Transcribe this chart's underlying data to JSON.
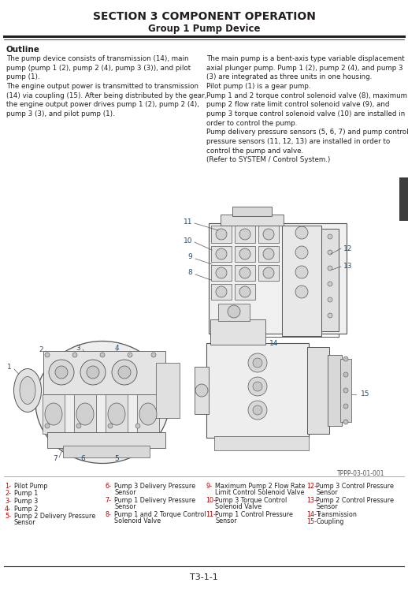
{
  "title": "SECTION 3 COMPONENT OPERATION",
  "subtitle": "Group 1 Pump Device",
  "section_label": "Outline",
  "body_left_line1": "The pump device consists of transmission (14), main",
  "body_left_line2": "pump (pump 1 (2), pump 2 (4), pump 3 (3)), and pilot",
  "body_left_line3": "pump (1).",
  "body_left_line4": "The engine output power is transmitted to transmission",
  "body_left_line5": "(14) via coupling (15). After being distributed by the gear,",
  "body_left_line6": "the engine output power drives pump 1 (2), pump 2 (4),",
  "body_left_line7": "pump 3 (3), and pilot pump (1).",
  "body_right_line1": "The main pump is a bent-axis type variable displacement",
  "body_right_line2": "axial plunger pump. Pump 1 (2), pump 2 (4), and pump 3",
  "body_right_line3": "(3) are integrated as three units in one housing.",
  "body_right_line4": "Pilot pump (1) is a gear pump.",
  "body_right_line5": "Pump 1 and 2 torque control solenoid valve (8), maximum",
  "body_right_line6": "pump 2 flow rate limit control solenoid valve (9), and",
  "body_right_line7": "pump 3 torque control solenoid valve (10) are installed in",
  "body_right_line8": "order to control the pump.",
  "body_right_line9": "Pump delivery pressure sensors (5, 6, 7) and pump control",
  "body_right_line10": "pressure sensors (11, 12, 13) are installed in order to",
  "body_right_line11": "control the pump and valve.",
  "body_right_line12": "(Refer to SYSTEM / Control System.)",
  "figure_note": "TPPP-03-01-001",
  "page_number": "T3-1-1",
  "legend_col1": [
    {
      "num": "1-",
      "lines": [
        "Pilot Pump"
      ]
    },
    {
      "num": "2-",
      "lines": [
        "Pump 1"
      ]
    },
    {
      "num": "3-",
      "lines": [
        "Pump 3"
      ]
    },
    {
      "num": "4-",
      "lines": [
        "Pump 2"
      ]
    },
    {
      "num": "5-",
      "lines": [
        "Pump 2 Delivery Pressure",
        "Sensor"
      ]
    }
  ],
  "legend_col2": [
    {
      "num": "6-",
      "lines": [
        "Pump 3 Delivery Pressure",
        "Sensor"
      ]
    },
    {
      "num": "7-",
      "lines": [
        "Pump 1 Delivery Pressure",
        "Sensor"
      ]
    },
    {
      "num": "8-",
      "lines": [
        "Pump 1 and 2 Torque Control",
        "Solenoid Valve"
      ]
    }
  ],
  "legend_col3": [
    {
      "num": "9-",
      "lines": [
        "Maximum Pump 2 Flow Rate",
        "Limit Control Solenoid Valve"
      ]
    },
    {
      "num": "10-",
      "lines": [
        "Pump 3 Torque Control",
        "Solenoid Valve"
      ]
    },
    {
      "num": "11-",
      "lines": [
        "Pump 1 Control Pressure",
        "Sensor"
      ]
    }
  ],
  "legend_col4": [
    {
      "num": "12-",
      "lines": [
        "Pump 3 Control Pressure",
        "Sensor"
      ]
    },
    {
      "num": "13-",
      "lines": [
        "Pump 2 Control Pressure",
        "Sensor"
      ]
    },
    {
      "num": "14-",
      "lines": [
        "Transmission"
      ]
    },
    {
      "num": "15-",
      "lines": [
        "Coupling"
      ]
    }
  ],
  "bg_color": "#ffffff",
  "text_color": "#231f20",
  "title_color": "#231f20",
  "line_color": "#231f20",
  "sidebar_color": "#3d3d3d",
  "legend_num_color": "#c00000",
  "diagram_line_color": "#555555",
  "diagram_fill": "#e8e8e8",
  "label_color": "#1f4e79"
}
